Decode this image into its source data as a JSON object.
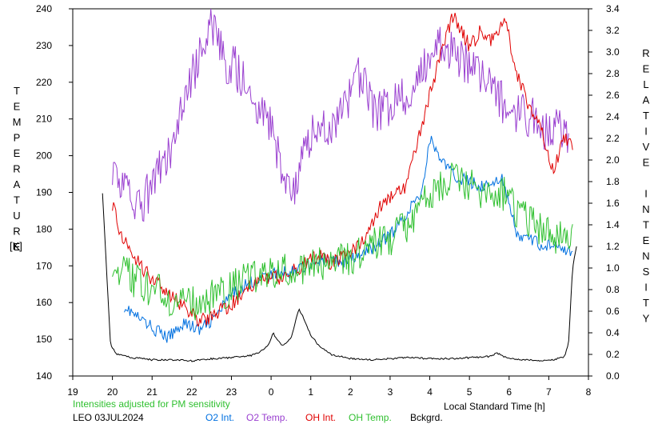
{
  "chart_data": {
    "type": "line",
    "station": "LEO 03JUL2024",
    "note": "Intensities adjusted for PM sensitivity",
    "xlabel": "Local Standard Time [h]",
    "ylabel_left": "TEMPERATURE",
    "ylabel_left_unit": "[K]",
    "ylabel_right": "RELATIVE INTENSITY",
    "x_ticks": [
      "19",
      "20",
      "21",
      "22",
      "23",
      "0",
      "1",
      "2",
      "3",
      "4",
      "5",
      "6",
      "7",
      "8"
    ],
    "y_left_ticks": [
      "140",
      "150",
      "160",
      "170",
      "180",
      "190",
      "200",
      "210",
      "220",
      "230",
      "240"
    ],
    "y_right_ticks": [
      "0.0",
      "0.2",
      "0.4",
      "0.6",
      "0.8",
      "1.0",
      "1.2",
      "1.4",
      "1.6",
      "1.8",
      "2.0",
      "2.2",
      "2.4",
      "2.6",
      "2.8",
      "3.0",
      "3.2",
      "3.4"
    ],
    "xlim": [
      19,
      32
    ],
    "ylim_left": [
      140,
      240
    ],
    "ylim_right": [
      0,
      3.4
    ],
    "grid": false,
    "legend_position": "bottom",
    "series": [
      {
        "name": "O2 Int.",
        "color": "#0070e0",
        "axis": "right",
        "x": [
          20.3,
          20.6,
          21.0,
          21.4,
          21.8,
          22.2,
          22.6,
          23.0,
          23.4,
          23.8,
          24.2,
          24.6,
          25.0,
          25.4,
          25.8,
          26.2,
          26.6,
          27.0,
          27.4,
          27.8,
          28.0,
          28.3,
          28.6,
          29.0,
          29.4,
          29.8,
          30.2,
          30.6,
          30.9,
          31.2,
          31.5,
          31.6
        ],
        "y": [
          0.65,
          0.55,
          0.45,
          0.35,
          0.5,
          0.42,
          0.55,
          0.75,
          0.85,
          0.92,
          0.95,
          0.98,
          1.05,
          1.08,
          1.05,
          1.1,
          1.2,
          1.3,
          1.5,
          1.7,
          2.2,
          2.0,
          1.85,
          1.8,
          1.75,
          1.85,
          1.3,
          1.25,
          1.2,
          1.25,
          1.15,
          1.1
        ]
      },
      {
        "name": "O2 Temp.",
        "color": "#9a40d0",
        "axis": "left",
        "x": [
          20.0,
          20.4,
          20.6,
          20.9,
          21.2,
          21.5,
          21.8,
          22.0,
          22.3,
          22.5,
          22.8,
          23.1,
          23.4,
          23.7,
          24.0,
          24.3,
          24.6,
          24.9,
          25.2,
          25.5,
          25.8,
          26.1,
          26.3,
          26.6,
          27.0,
          27.4,
          27.8,
          28.2,
          28.6,
          29.0,
          29.4,
          29.8,
          30.2,
          30.6,
          30.9,
          31.2,
          31.5
        ],
        "y": [
          198,
          188,
          184,
          190,
          196,
          203,
          214,
          221,
          232,
          236,
          226,
          224,
          218,
          212,
          207,
          195,
          192,
          203,
          208,
          207,
          211,
          220,
          222,
          211,
          214,
          216,
          222,
          230,
          228,
          225,
          222,
          215,
          212,
          210,
          206,
          208,
          205
        ]
      },
      {
        "name": "OH Int.",
        "color": "#e00000",
        "axis": "right",
        "x": [
          20.0,
          20.2,
          20.4,
          20.6,
          20.8,
          21.0,
          21.3,
          21.6,
          21.9,
          22.2,
          22.5,
          22.8,
          23.1,
          23.4,
          23.7,
          24.0,
          24.3,
          24.6,
          24.9,
          25.2,
          25.5,
          25.8,
          26.1,
          26.4,
          26.8,
          27.1,
          27.4,
          27.7,
          28.0,
          28.3,
          28.6,
          29.0,
          29.3,
          29.6,
          29.9,
          30.2,
          30.5,
          30.8,
          31.1,
          31.4,
          31.6
        ],
        "y": [
          1.6,
          1.3,
          1.22,
          1.08,
          0.98,
          0.9,
          0.82,
          0.7,
          0.6,
          0.5,
          0.55,
          0.62,
          0.7,
          0.82,
          0.88,
          0.9,
          0.92,
          0.98,
          1.05,
          1.12,
          1.05,
          1.1,
          1.18,
          1.3,
          1.6,
          1.7,
          1.75,
          2.2,
          2.6,
          3.0,
          3.35,
          3.05,
          3.2,
          3.1,
          3.3,
          2.8,
          2.5,
          2.3,
          1.9,
          2.2,
          2.1
        ]
      },
      {
        "name": "OH Temp.",
        "color": "#30c030",
        "axis": "left",
        "x": [
          20.0,
          20.3,
          20.6,
          20.9,
          21.2,
          21.5,
          21.8,
          22.1,
          22.4,
          22.7,
          23.0,
          23.3,
          23.6,
          23.9,
          24.2,
          24.5,
          24.8,
          25.1,
          25.4,
          25.7,
          26.0,
          26.3,
          26.6,
          26.9,
          27.2,
          27.5,
          27.8,
          28.1,
          28.4,
          28.7,
          29.0,
          29.3,
          29.6,
          29.9,
          30.2,
          30.5,
          30.8,
          31.1,
          31.4,
          31.6
        ],
        "y": [
          172,
          168,
          166,
          164,
          163,
          161,
          160,
          160,
          161,
          162,
          164,
          166,
          167,
          167,
          168,
          169,
          170,
          170,
          171,
          172,
          171,
          174,
          176,
          177,
          179,
          182,
          186,
          190,
          193,
          195,
          192,
          190,
          189,
          190,
          185,
          182,
          180,
          178,
          179,
          177
        ]
      },
      {
        "name": "Bckgrd.",
        "color": "#000000",
        "axis": "right",
        "x": [
          19.75,
          19.85,
          19.95,
          20.1,
          20.5,
          21.0,
          21.5,
          22.0,
          22.5,
          23.0,
          23.5,
          23.8,
          23.95,
          24.05,
          24.15,
          24.3,
          24.5,
          24.6,
          24.7,
          24.8,
          25.0,
          25.2,
          25.5,
          26.0,
          26.5,
          27.0,
          27.5,
          28.0,
          28.5,
          29.0,
          29.5,
          29.7,
          30.0,
          30.5,
          31.0,
          31.4,
          31.5,
          31.6,
          31.7
        ],
        "y": [
          1.7,
          1.0,
          0.3,
          0.2,
          0.17,
          0.15,
          0.15,
          0.14,
          0.16,
          0.17,
          0.19,
          0.24,
          0.3,
          0.4,
          0.33,
          0.28,
          0.35,
          0.48,
          0.62,
          0.55,
          0.38,
          0.28,
          0.2,
          0.16,
          0.15,
          0.16,
          0.17,
          0.16,
          0.16,
          0.17,
          0.18,
          0.21,
          0.16,
          0.15,
          0.14,
          0.18,
          0.3,
          1.0,
          1.2
        ]
      }
    ]
  }
}
